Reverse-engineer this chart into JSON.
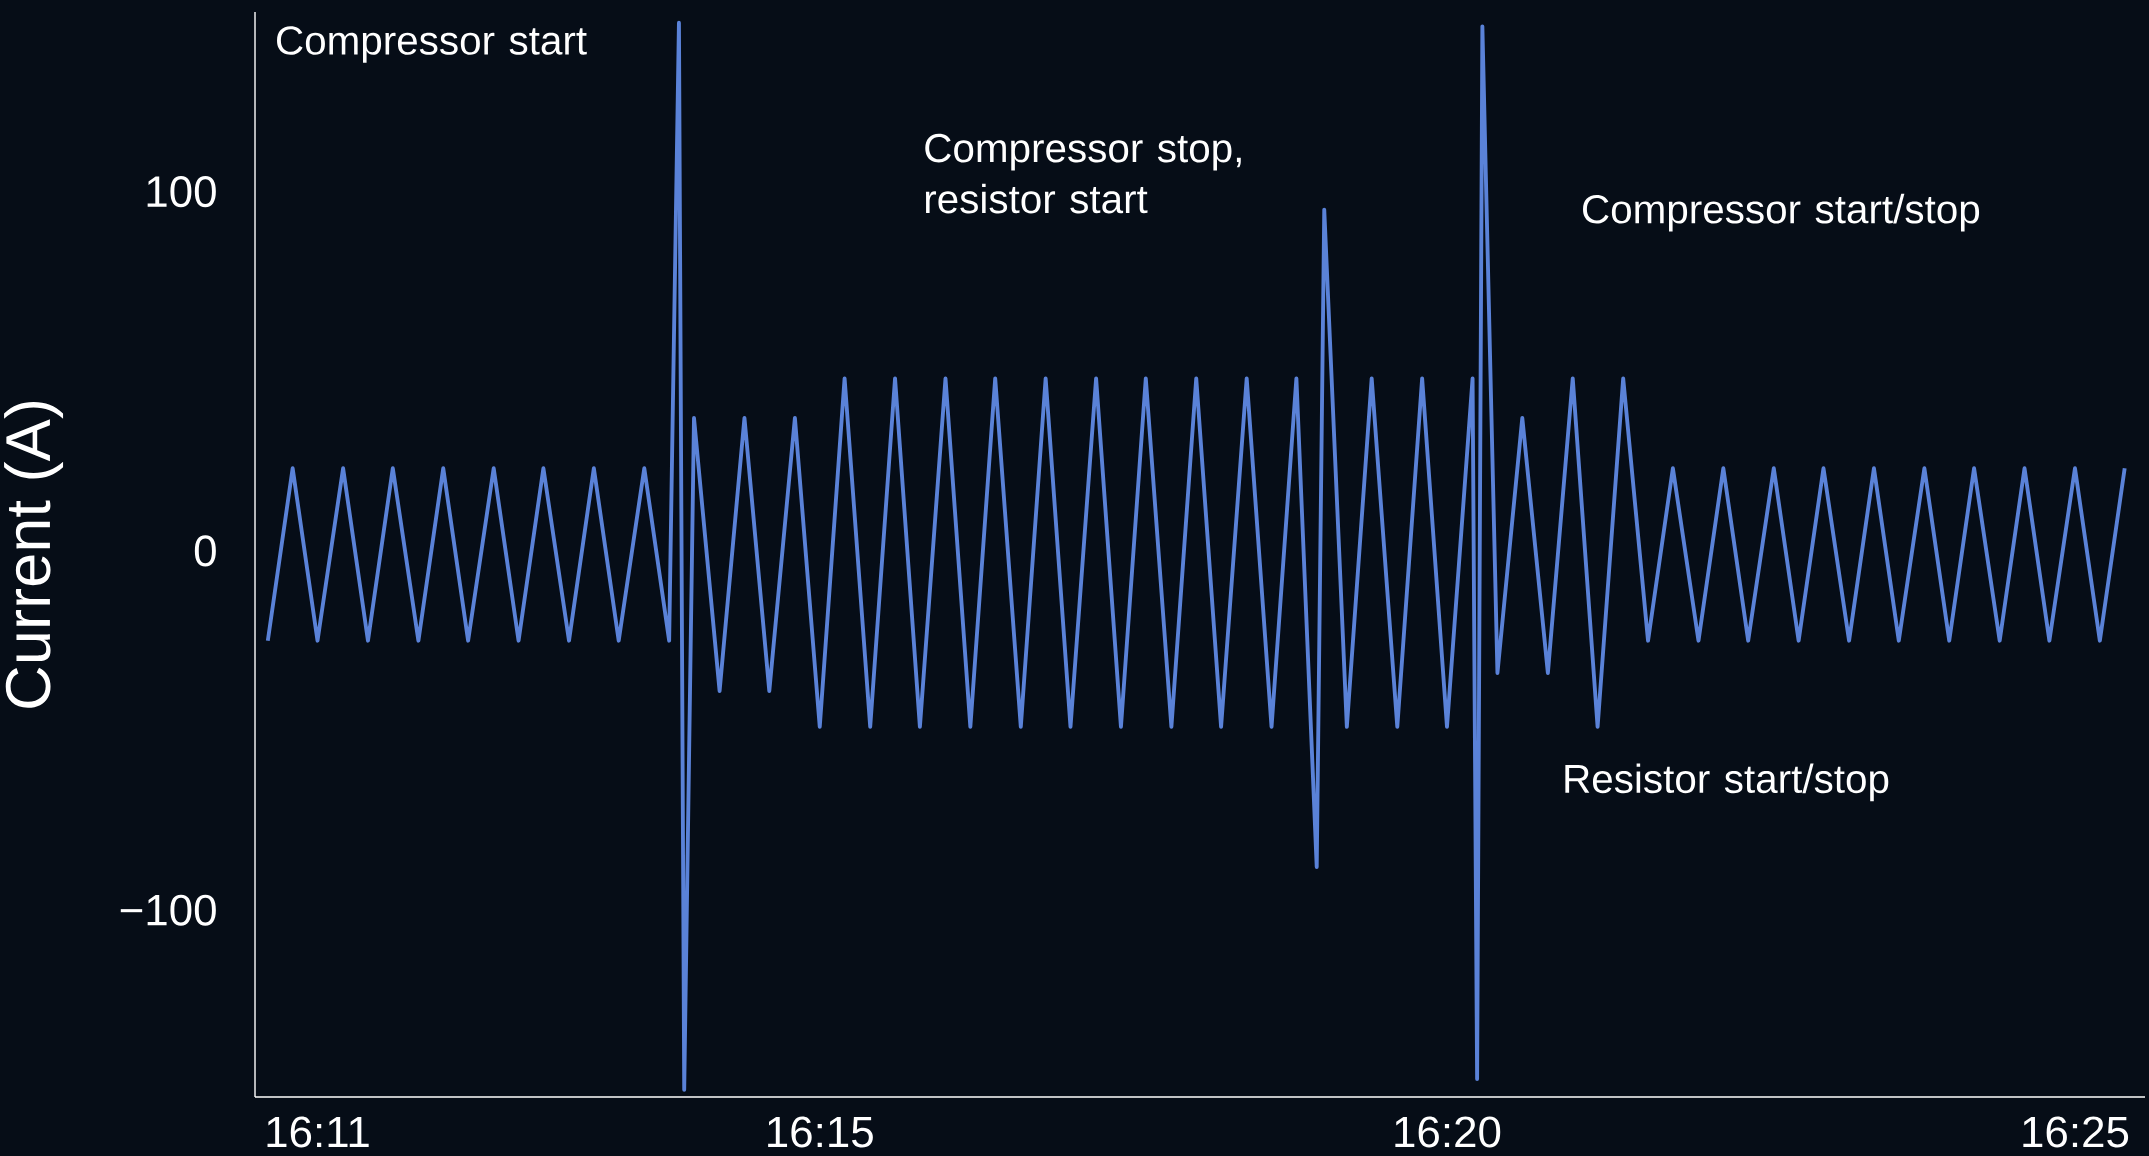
{
  "chart_data": {
    "type": "line",
    "ylabel": "Current (A)",
    "color": "#5a82d8",
    "marker": "none",
    "xlim": [
      16.175,
      16.426
    ],
    "ylim": [
      -152,
      150
    ],
    "xticks": [
      {
        "value": 16.1833,
        "label": "16:11"
      },
      {
        "value": 16.25,
        "label": "16:15"
      },
      {
        "value": 16.3333,
        "label": "16:20"
      },
      {
        "value": 16.4167,
        "label": "16:25"
      }
    ],
    "yticks": [
      {
        "value": -100,
        "label": "−100"
      },
      0,
      100
    ],
    "x": [
      16.1767,
      16.18,
      16.1833,
      16.1867,
      16.19,
      16.1933,
      16.1967,
      16.2,
      16.2033,
      16.2067,
      16.21,
      16.2133,
      16.2167,
      16.22,
      16.2233,
      16.2267,
      16.23,
      16.2313,
      16.232,
      16.2333,
      16.2367,
      16.24,
      16.2433,
      16.2467,
      16.25,
      16.2533,
      16.2567,
      16.26,
      16.2633,
      16.2667,
      16.27,
      16.2733,
      16.2767,
      16.28,
      16.2833,
      16.2867,
      16.29,
      16.2933,
      16.2967,
      16.3,
      16.3033,
      16.3067,
      16.31,
      16.3133,
      16.316,
      16.317,
      16.32,
      16.3233,
      16.3267,
      16.33,
      16.3333,
      16.3367,
      16.3373,
      16.338,
      16.34,
      16.3433,
      16.3467,
      16.35,
      16.3533,
      16.3567,
      16.36,
      16.3633,
      16.3667,
      16.37,
      16.3733,
      16.3767,
      16.38,
      16.3833,
      16.3867,
      16.39,
      16.3933,
      16.3967,
      16.4,
      16.4033,
      16.4067,
      16.41,
      16.4133,
      16.4167,
      16.42,
      16.4233
    ],
    "values": [
      -25,
      23,
      -25,
      23,
      -25,
      23,
      -25,
      23,
      -25,
      23,
      -25,
      23,
      -25,
      23,
      -25,
      23,
      -25,
      147,
      -150,
      37,
      -39,
      37,
      -39,
      37,
      -49,
      48,
      -49,
      48,
      -49,
      48,
      -49,
      48,
      -49,
      48,
      -49,
      48,
      -49,
      48,
      -49,
      48,
      -49,
      48,
      -49,
      48,
      -88,
      95,
      -49,
      48,
      -49,
      48,
      -49,
      48,
      -147,
      146,
      -34,
      37,
      -34,
      48,
      -49,
      48,
      -25,
      23,
      -25,
      23,
      -25,
      23,
      -25,
      23,
      -25,
      23,
      -25,
      23,
      -25,
      23,
      -25,
      23,
      -25,
      23,
      -25,
      23
    ],
    "annotations": [
      "Compressor start",
      "Compressor stop, resistor start",
      "Compressor start/stop",
      "Resistor start/stop"
    ]
  }
}
